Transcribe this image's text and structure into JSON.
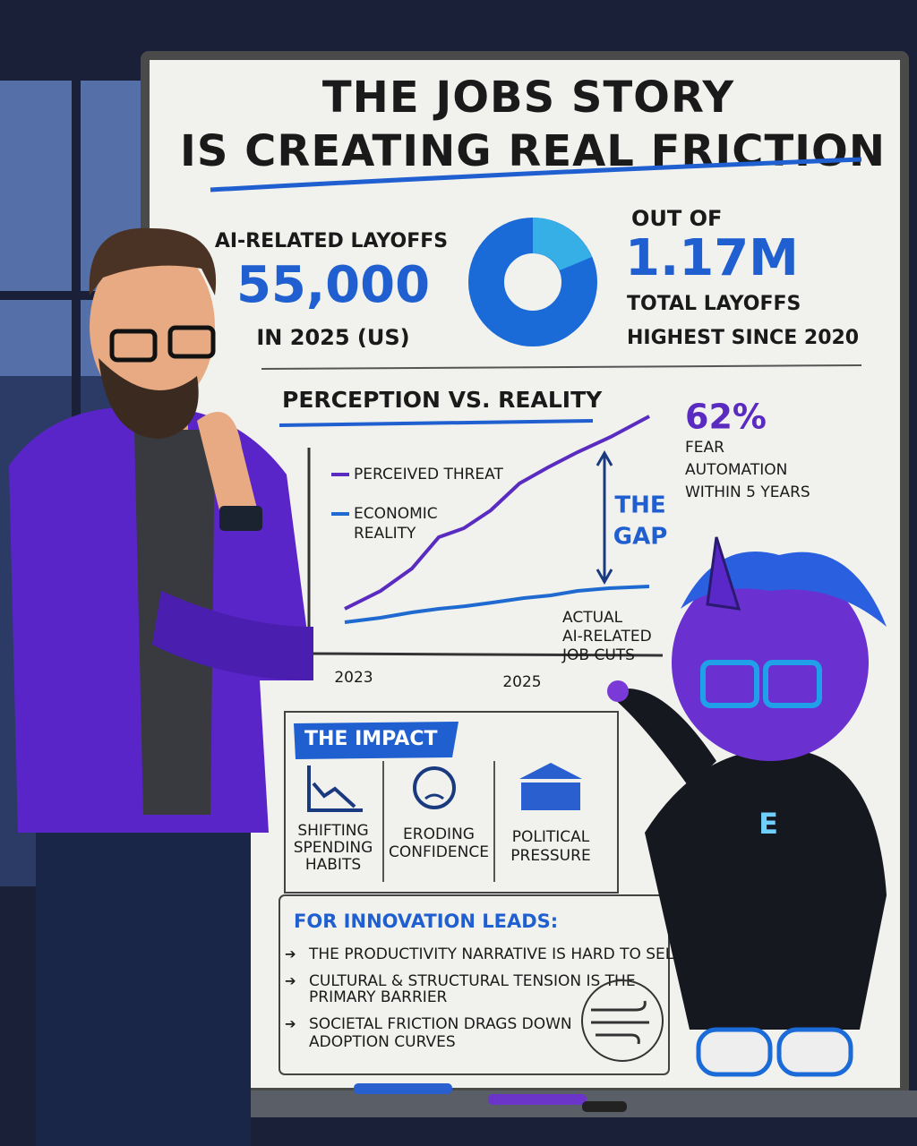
{
  "title": {
    "lines": [
      "THE JOBS STORY",
      "IS CREATING REAL FRICTION"
    ]
  },
  "stats": {
    "left": {
      "label": "AI-RELATED LAYOFFS",
      "value": "55,000",
      "sub": "IN 2025 (US)"
    },
    "right": {
      "prefix": "OUT OF",
      "value": "1.17M",
      "lines": [
        "TOTAL LAYOFFS",
        "HIGHEST SINCE 2020"
      ]
    }
  },
  "perception": {
    "heading": "PERCEPTION VS. REALITY",
    "legend": [
      {
        "lines": [
          "PERCEIVED THREAT"
        ]
      },
      {
        "lines": [
          "ECONOMIC",
          "REALITY"
        ]
      }
    ],
    "x_labels": [
      "2023",
      "2025"
    ],
    "gap": [
      "THE",
      "GAP"
    ],
    "stat": {
      "value": "62%",
      "lines": [
        "FEAR",
        "AUTOMATION",
        "WITHIN 5 YEARS"
      ]
    },
    "actual": [
      "ACTUAL",
      "AI-RELATED",
      "JOB CUTS"
    ]
  },
  "impact": {
    "heading": "THE IMPACT",
    "items": [
      {
        "lines": [
          "SHIFTING",
          "SPENDING",
          "HABITS"
        ]
      },
      {
        "lines": [
          "ERODING",
          "CONFIDENCE"
        ]
      },
      {
        "lines": [
          "POLITICAL",
          "PRESSURE"
        ]
      }
    ]
  },
  "leads": {
    "heading": "FOR INNOVATION LEADS:",
    "bullets": [
      {
        "lines": [
          "THE PRODUCTIVITY NARRATIVE IS HARD TO SELL"
        ]
      },
      {
        "lines": [
          "CULTURAL & STRUCTURAL TENSION IS THE",
          "PRIMARY BARRIER"
        ]
      },
      {
        "lines": [
          "SOCIETAL FRICTION DRAGS DOWN",
          "ADOPTION CURVES"
        ]
      }
    ]
  },
  "mascot": {
    "badge": "E"
  }
}
